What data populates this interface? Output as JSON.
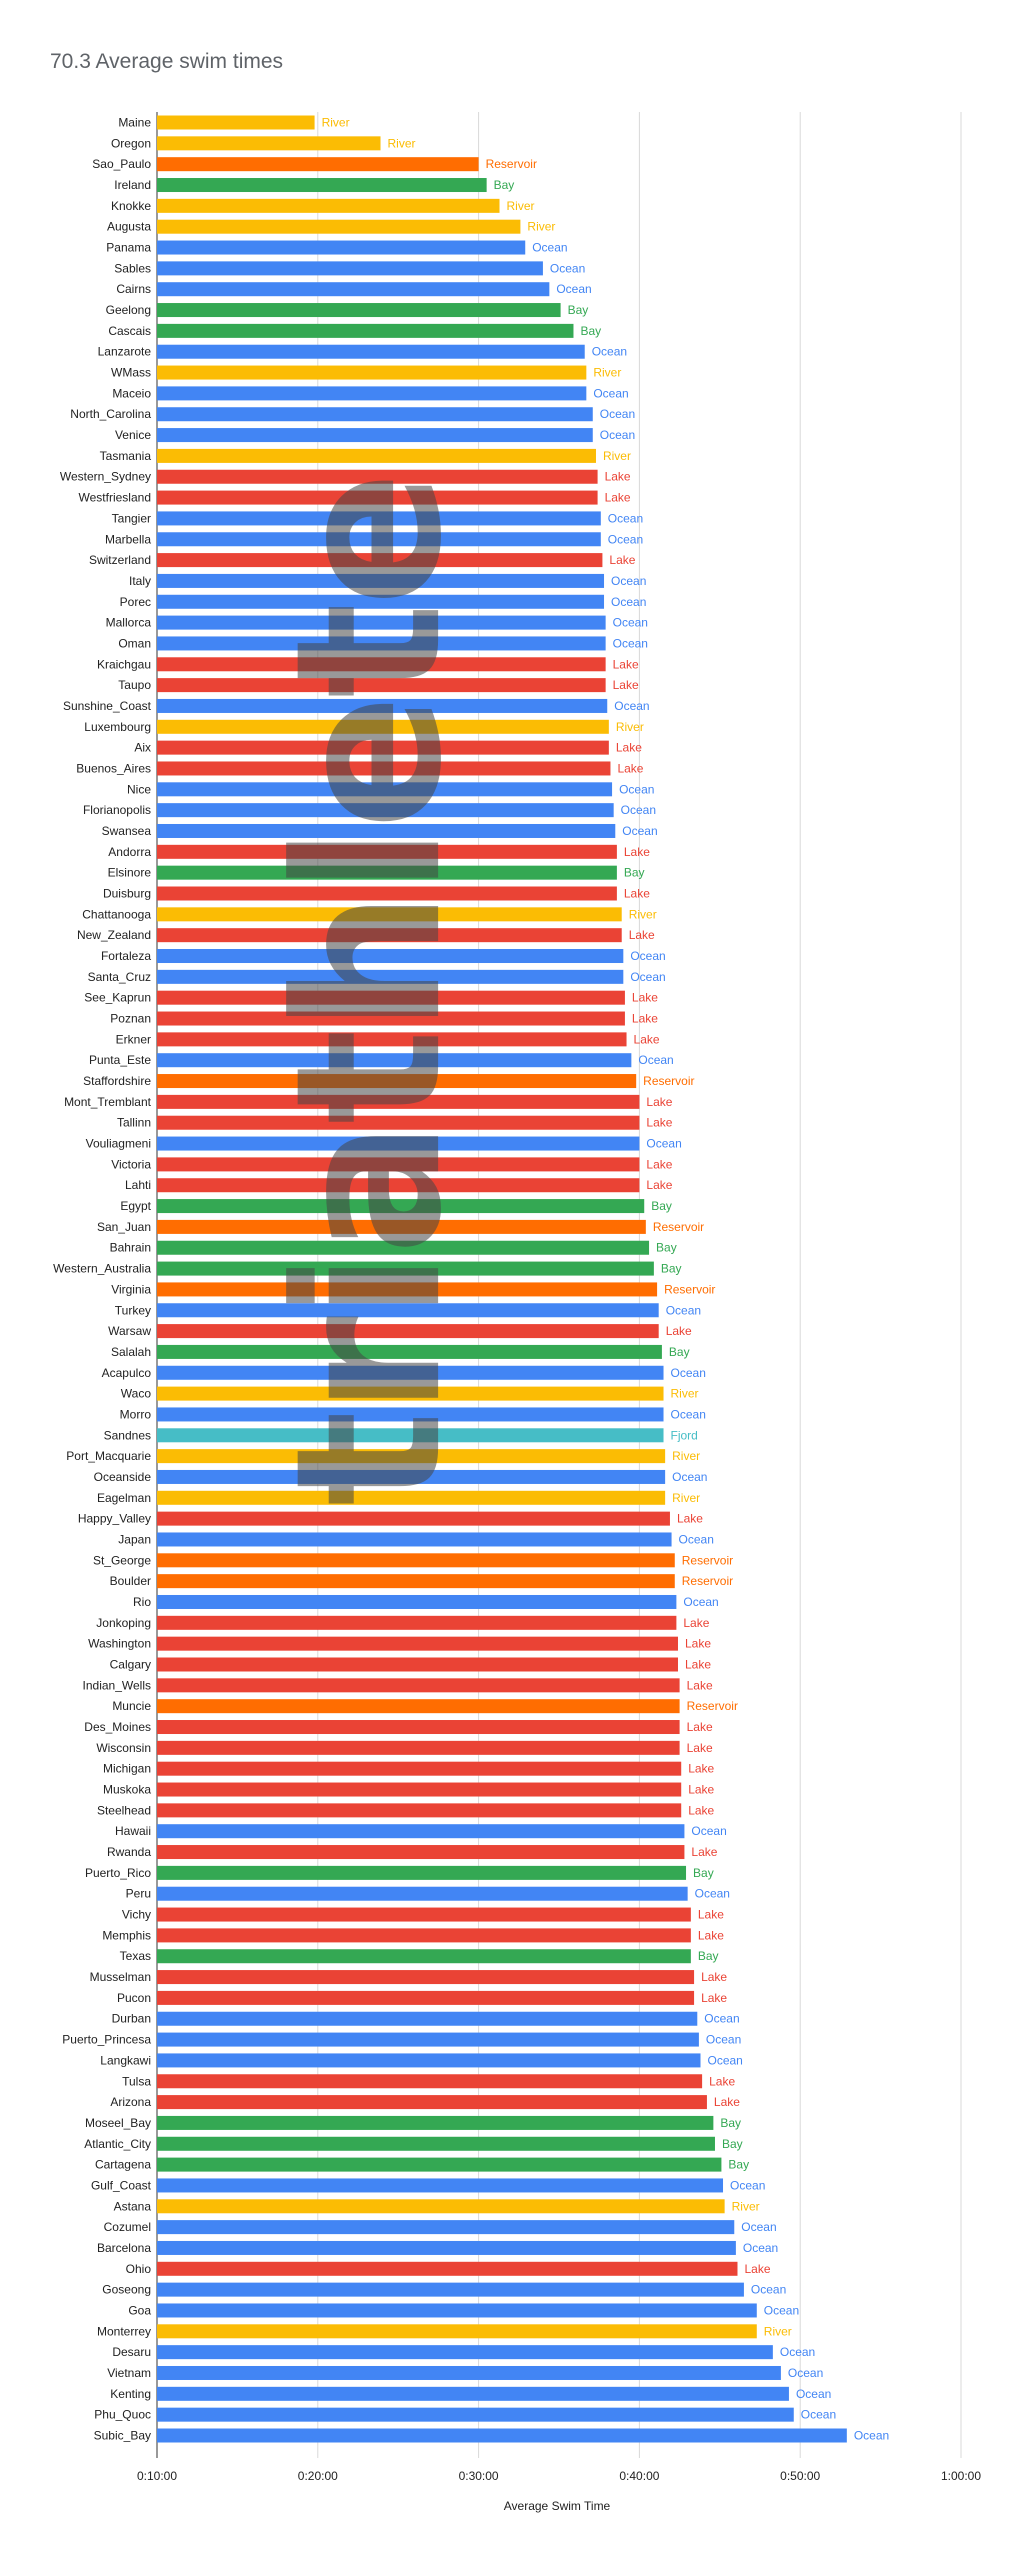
{
  "chart_data": {
    "type": "bar",
    "orientation": "horizontal",
    "title": "70.3 Average swim times",
    "xlabel": "Average Swim Time",
    "ylabel": "",
    "x_unit": "minutes",
    "xlim": [
      10,
      60
    ],
    "x_ticks": [
      10,
      20,
      30,
      40,
      50,
      60
    ],
    "x_tick_labels": [
      "0:10:00",
      "0:20:00",
      "0:30:00",
      "0:40:00",
      "0:50:00",
      "1:00:00"
    ],
    "grid": true,
    "legend": "none",
    "watermark": "triathlete",
    "type_colors": {
      "River": "#fbbc04",
      "Reservoir": "#ff6d01",
      "Bay": "#34a853",
      "Ocean": "#4285f4",
      "Lake": "#ea4335",
      "Fjord": "#46bdc6"
    },
    "bars": [
      {
        "name": "Maine",
        "value": 19.8,
        "type": "River"
      },
      {
        "name": "Oregon",
        "value": 23.9,
        "type": "River"
      },
      {
        "name": "Sao_Paulo",
        "value": 30.0,
        "type": "Reservoir"
      },
      {
        "name": "Ireland",
        "value": 30.5,
        "type": "Bay"
      },
      {
        "name": "Knokke",
        "value": 31.3,
        "type": "River"
      },
      {
        "name": "Augusta",
        "value": 32.6,
        "type": "River"
      },
      {
        "name": "Panama",
        "value": 32.9,
        "type": "Ocean"
      },
      {
        "name": "Sables",
        "value": 34.0,
        "type": "Ocean"
      },
      {
        "name": "Cairns",
        "value": 34.4,
        "type": "Ocean"
      },
      {
        "name": "Geelong",
        "value": 35.1,
        "type": "Bay"
      },
      {
        "name": "Cascais",
        "value": 35.9,
        "type": "Bay"
      },
      {
        "name": "Lanzarote",
        "value": 36.6,
        "type": "Ocean"
      },
      {
        "name": "WMass",
        "value": 36.7,
        "type": "River"
      },
      {
        "name": "Maceio",
        "value": 36.7,
        "type": "Ocean"
      },
      {
        "name": "North_Carolina",
        "value": 37.1,
        "type": "Ocean"
      },
      {
        "name": "Venice",
        "value": 37.1,
        "type": "Ocean"
      },
      {
        "name": "Tasmania",
        "value": 37.3,
        "type": "River"
      },
      {
        "name": "Western_Sydney",
        "value": 37.4,
        "type": "Lake"
      },
      {
        "name": "Westfriesland",
        "value": 37.4,
        "type": "Lake"
      },
      {
        "name": "Tangier",
        "value": 37.6,
        "type": "Ocean"
      },
      {
        "name": "Marbella",
        "value": 37.6,
        "type": "Ocean"
      },
      {
        "name": "Switzerland",
        "value": 37.7,
        "type": "Lake"
      },
      {
        "name": "Italy",
        "value": 37.8,
        "type": "Ocean"
      },
      {
        "name": "Porec",
        "value": 37.8,
        "type": "Ocean"
      },
      {
        "name": "Mallorca",
        "value": 37.9,
        "type": "Ocean"
      },
      {
        "name": "Oman",
        "value": 37.9,
        "type": "Ocean"
      },
      {
        "name": "Kraichgau",
        "value": 37.9,
        "type": "Lake"
      },
      {
        "name": "Taupo",
        "value": 37.9,
        "type": "Lake"
      },
      {
        "name": "Sunshine_Coast",
        "value": 38.0,
        "type": "Ocean"
      },
      {
        "name": "Luxembourg",
        "value": 38.1,
        "type": "River"
      },
      {
        "name": "Aix",
        "value": 38.1,
        "type": "Lake"
      },
      {
        "name": "Buenos_Aires",
        "value": 38.2,
        "type": "Lake"
      },
      {
        "name": "Nice",
        "value": 38.3,
        "type": "Ocean"
      },
      {
        "name": "Florianopolis",
        "value": 38.4,
        "type": "Ocean"
      },
      {
        "name": "Swansea",
        "value": 38.5,
        "type": "Ocean"
      },
      {
        "name": "Andorra",
        "value": 38.6,
        "type": "Lake"
      },
      {
        "name": "Elsinore",
        "value": 38.6,
        "type": "Bay"
      },
      {
        "name": "Duisburg",
        "value": 38.6,
        "type": "Lake"
      },
      {
        "name": "Chattanooga",
        "value": 38.9,
        "type": "River"
      },
      {
        "name": "New_Zealand",
        "value": 38.9,
        "type": "Lake"
      },
      {
        "name": "Fortaleza",
        "value": 39.0,
        "type": "Ocean"
      },
      {
        "name": "Santa_Cruz",
        "value": 39.0,
        "type": "Ocean"
      },
      {
        "name": "See_Kaprun",
        "value": 39.1,
        "type": "Lake"
      },
      {
        "name": "Poznan",
        "value": 39.1,
        "type": "Lake"
      },
      {
        "name": "Erkner",
        "value": 39.2,
        "type": "Lake"
      },
      {
        "name": "Punta_Este",
        "value": 39.5,
        "type": "Ocean"
      },
      {
        "name": "Staffordshire",
        "value": 39.8,
        "type": "Reservoir"
      },
      {
        "name": "Mont_Tremblant",
        "value": 40.0,
        "type": "Lake"
      },
      {
        "name": "Tallinn",
        "value": 40.0,
        "type": "Lake"
      },
      {
        "name": "Vouliagmeni",
        "value": 40.0,
        "type": "Ocean"
      },
      {
        "name": "Victoria",
        "value": 40.0,
        "type": "Lake"
      },
      {
        "name": "Lahti",
        "value": 40.0,
        "type": "Lake"
      },
      {
        "name": "Egypt",
        "value": 40.3,
        "type": "Bay"
      },
      {
        "name": "San_Juan",
        "value": 40.4,
        "type": "Reservoir"
      },
      {
        "name": "Bahrain",
        "value": 40.6,
        "type": "Bay"
      },
      {
        "name": "Western_Australia",
        "value": 40.9,
        "type": "Bay"
      },
      {
        "name": "Virginia",
        "value": 41.1,
        "type": "Reservoir"
      },
      {
        "name": "Turkey",
        "value": 41.2,
        "type": "Ocean"
      },
      {
        "name": "Warsaw",
        "value": 41.2,
        "type": "Lake"
      },
      {
        "name": "Salalah",
        "value": 41.4,
        "type": "Bay"
      },
      {
        "name": "Acapulco",
        "value": 41.5,
        "type": "Ocean"
      },
      {
        "name": "Waco",
        "value": 41.5,
        "type": "River"
      },
      {
        "name": "Morro",
        "value": 41.5,
        "type": "Ocean"
      },
      {
        "name": "Sandnes",
        "value": 41.5,
        "type": "Fjord"
      },
      {
        "name": "Port_Macquarie",
        "value": 41.6,
        "type": "River"
      },
      {
        "name": "Oceanside",
        "value": 41.6,
        "type": "Ocean"
      },
      {
        "name": "Eagelman",
        "value": 41.6,
        "type": "River"
      },
      {
        "name": "Happy_Valley",
        "value": 41.9,
        "type": "Lake"
      },
      {
        "name": "Japan",
        "value": 42.0,
        "type": "Ocean"
      },
      {
        "name": "St_George",
        "value": 42.2,
        "type": "Reservoir"
      },
      {
        "name": "Boulder",
        "value": 42.2,
        "type": "Reservoir"
      },
      {
        "name": "Rio",
        "value": 42.3,
        "type": "Ocean"
      },
      {
        "name": "Jonkoping",
        "value": 42.3,
        "type": "Lake"
      },
      {
        "name": "Washington",
        "value": 42.4,
        "type": "Lake"
      },
      {
        "name": "Calgary",
        "value": 42.4,
        "type": "Lake"
      },
      {
        "name": "Indian_Wells",
        "value": 42.5,
        "type": "Lake"
      },
      {
        "name": "Muncie",
        "value": 42.5,
        "type": "Reservoir"
      },
      {
        "name": "Des_Moines",
        "value": 42.5,
        "type": "Lake"
      },
      {
        "name": "Wisconsin",
        "value": 42.5,
        "type": "Lake"
      },
      {
        "name": "Michigan",
        "value": 42.6,
        "type": "Lake"
      },
      {
        "name": "Muskoka",
        "value": 42.6,
        "type": "Lake"
      },
      {
        "name": "Steelhead",
        "value": 42.6,
        "type": "Lake"
      },
      {
        "name": "Hawaii",
        "value": 42.8,
        "type": "Ocean"
      },
      {
        "name": "Rwanda",
        "value": 42.8,
        "type": "Lake"
      },
      {
        "name": "Puerto_Rico",
        "value": 42.9,
        "type": "Bay"
      },
      {
        "name": "Peru",
        "value": 43.0,
        "type": "Ocean"
      },
      {
        "name": "Vichy",
        "value": 43.2,
        "type": "Lake"
      },
      {
        "name": "Memphis",
        "value": 43.2,
        "type": "Lake"
      },
      {
        "name": "Texas",
        "value": 43.2,
        "type": "Bay"
      },
      {
        "name": "Musselman",
        "value": 43.4,
        "type": "Lake"
      },
      {
        "name": "Pucon",
        "value": 43.4,
        "type": "Lake"
      },
      {
        "name": "Durban",
        "value": 43.6,
        "type": "Ocean"
      },
      {
        "name": "Puerto_Princesa",
        "value": 43.7,
        "type": "Ocean"
      },
      {
        "name": "Langkawi",
        "value": 43.8,
        "type": "Ocean"
      },
      {
        "name": "Tulsa",
        "value": 43.9,
        "type": "Lake"
      },
      {
        "name": "Arizona",
        "value": 44.2,
        "type": "Lake"
      },
      {
        "name": "Moseel_Bay",
        "value": 44.6,
        "type": "Bay"
      },
      {
        "name": "Atlantic_City",
        "value": 44.7,
        "type": "Bay"
      },
      {
        "name": "Cartagena",
        "value": 45.1,
        "type": "Bay"
      },
      {
        "name": "Gulf_Coast",
        "value": 45.2,
        "type": "Ocean"
      },
      {
        "name": "Astana",
        "value": 45.3,
        "type": "River"
      },
      {
        "name": "Cozumel",
        "value": 45.9,
        "type": "Ocean"
      },
      {
        "name": "Barcelona",
        "value": 46.0,
        "type": "Ocean"
      },
      {
        "name": "Ohio",
        "value": 46.1,
        "type": "Lake"
      },
      {
        "name": "Goseong",
        "value": 46.5,
        "type": "Ocean"
      },
      {
        "name": "Goa",
        "value": 47.3,
        "type": "Ocean"
      },
      {
        "name": "Monterrey",
        "value": 47.3,
        "type": "River"
      },
      {
        "name": "Desaru",
        "value": 48.3,
        "type": "Ocean"
      },
      {
        "name": "Vietnam",
        "value": 48.8,
        "type": "Ocean"
      },
      {
        "name": "Kenting",
        "value": 49.3,
        "type": "Ocean"
      },
      {
        "name": "Phu_Quoc",
        "value": 49.6,
        "type": "Ocean"
      },
      {
        "name": "Subic_Bay",
        "value": 52.9,
        "type": "Ocean"
      }
    ]
  }
}
